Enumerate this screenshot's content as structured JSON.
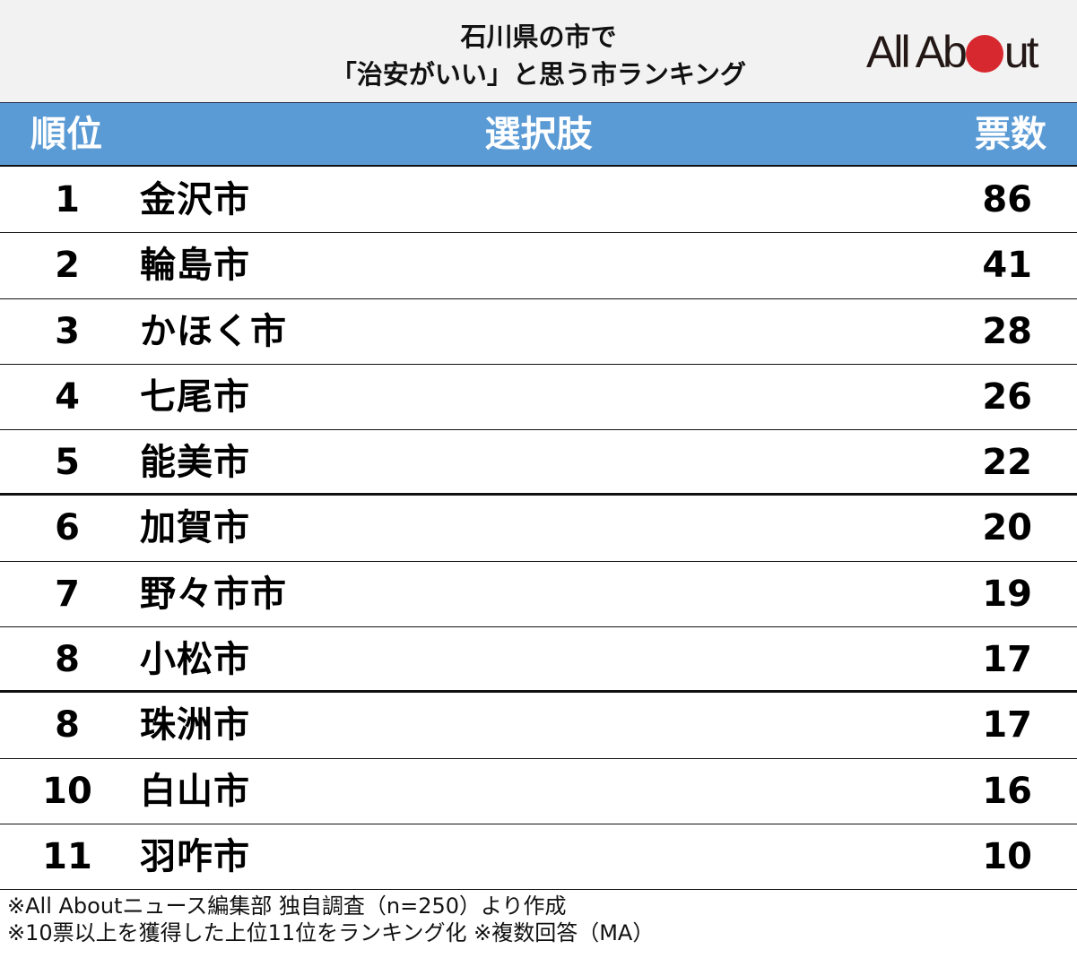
{
  "title": {
    "line1": "石川県の市で",
    "line2": "「治安がいい」と思う市ランキング"
  },
  "logo": {
    "text_before": "All Ab",
    "text_after": "ut",
    "dot_color": "#d7282f",
    "name": "All About"
  },
  "table": {
    "headers": {
      "rank": "順位",
      "choice": "選択肢",
      "votes": "票数"
    },
    "header_color": "#5b9bd5",
    "rows": [
      {
        "rank": "1",
        "name": "金沢市",
        "votes": "86"
      },
      {
        "rank": "2",
        "name": "輪島市",
        "votes": "41"
      },
      {
        "rank": "3",
        "name": "かほく市",
        "votes": "28"
      },
      {
        "rank": "4",
        "name": "七尾市",
        "votes": "26"
      },
      {
        "rank": "5",
        "name": "能美市",
        "votes": "22"
      },
      {
        "rank": "6",
        "name": "加賀市",
        "votes": "20"
      },
      {
        "rank": "7",
        "name": "野々市市",
        "votes": "19"
      },
      {
        "rank": "8",
        "name": "小松市",
        "votes": "17"
      },
      {
        "rank": "8",
        "name": "珠洲市",
        "votes": "17"
      },
      {
        "rank": "10",
        "name": "白山市",
        "votes": "16"
      },
      {
        "rank": "11",
        "name": "羽咋市",
        "votes": "10"
      }
    ]
  },
  "footnotes": {
    "line1": "※All Aboutニュース編集部 独自調査（n=250）より作成",
    "line2": "※10票以上を獲得した上位11位をランキング化 ※複数回答（MA）"
  },
  "chart_data": {
    "type": "table",
    "title": "石川県の市で「治安がいい」と思う市ランキング",
    "columns": [
      "順位",
      "選択肢",
      "票数"
    ],
    "categories": [
      "金沢市",
      "輪島市",
      "かほく市",
      "七尾市",
      "能美市",
      "加賀市",
      "野々市市",
      "小松市",
      "珠洲市",
      "白山市",
      "羽咋市"
    ],
    "ranks": [
      1,
      2,
      3,
      4,
      5,
      6,
      7,
      8,
      8,
      10,
      11
    ],
    "values": [
      86,
      41,
      28,
      26,
      22,
      20,
      19,
      17,
      17,
      16,
      10
    ],
    "notes": [
      "※All Aboutニュース編集部 独自調査（n=250）より作成",
      "※10票以上を獲得した上位11位をランキング化 ※複数回答（MA）"
    ]
  }
}
